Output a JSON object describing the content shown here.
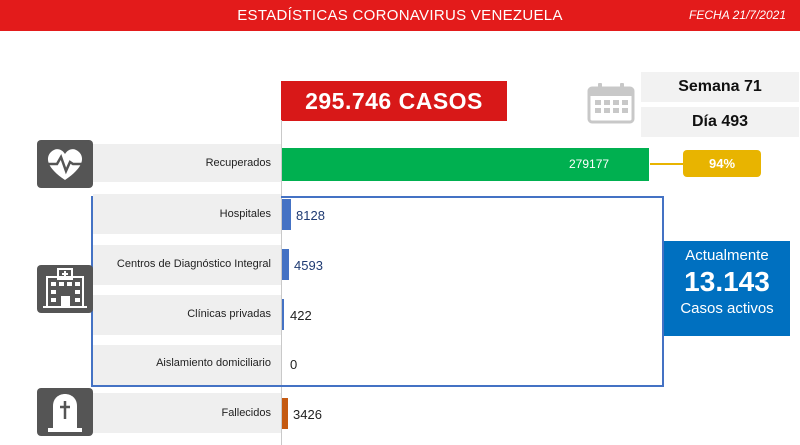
{
  "header": {
    "title": "ESTADÍSTICAS CORONAVIRUS VENEZUELA",
    "date": "FECHA 21/7/2021"
  },
  "total_cases": "295.746 CASOS",
  "week": "Semana 71",
  "day": "Día 493",
  "recovered_pct": "94%",
  "active": {
    "top": "Actualmente",
    "value": "13.143",
    "bottom": "Casos activos"
  },
  "colors": {
    "recovered": "#00b050",
    "active_sites": "#4472c4",
    "deaths": "#c55a11",
    "header": "#e31b1b"
  },
  "icons": [
    "heart-pulse-icon",
    "calendar-icon",
    "hospital-icon",
    "tombstone-icon"
  ],
  "chart_data": {
    "type": "bar",
    "categories": [
      "Recuperados",
      "Hospitales",
      "Centros de Diagnóstico Integral",
      "Clínicas privadas",
      "Aislamiento domiciliario",
      "Fallecidos"
    ],
    "values": [
      279177,
      8128,
      4593,
      422,
      0,
      3426
    ],
    "value_labels": [
      "279177",
      "8128",
      "4593",
      "422",
      "0",
      "3426"
    ]
  }
}
